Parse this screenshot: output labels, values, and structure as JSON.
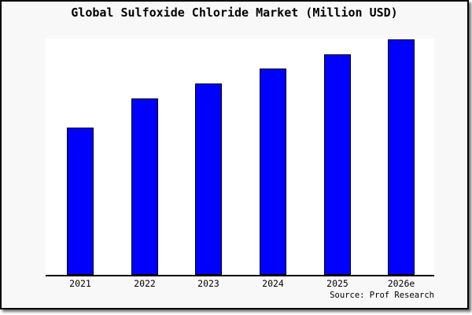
{
  "title": "Global Sulfoxide Chloride Market (Million USD)",
  "source_credit": "Source: Prof Research",
  "colors": {
    "bar_fill": "#0000ff",
    "bar_border": "#000000",
    "canvas_background": "#f8f8f8",
    "plot_background": "#ffffff",
    "axis_line": "#000000",
    "text": "#000000"
  },
  "chart_data": {
    "type": "bar",
    "title": "Global Sulfoxide Chloride Market (Million USD)",
    "source": "Source: Prof Research",
    "categories": [
      "2021",
      "2022",
      "2023",
      "2024",
      "2025",
      "2026e"
    ],
    "values": [
      62.3,
      74.7,
      81.0,
      87.3,
      93.3,
      99.7
    ],
    "value_note": "relative units estimated from bar heights; no y-axis scale shown in image",
    "xlabel": "",
    "ylabel": "",
    "ylim": [
      0,
      100
    ],
    "grid": false,
    "legend": false,
    "y_axis_labels_visible": false
  }
}
